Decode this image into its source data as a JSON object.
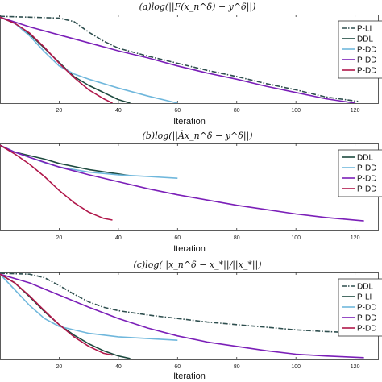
{
  "chart_data": [
    {
      "type": "line",
      "title": "(a)log(||F(x_n^δ) − y^δ||)",
      "xlabel": "Iteration",
      "ylabel": "",
      "xlim": [
        0,
        128
      ],
      "ylim": [
        0,
        1
      ],
      "xticks": [
        20,
        40,
        60,
        80,
        100,
        120
      ],
      "grid": false,
      "legend_position": "top-right",
      "series": [
        {
          "name": "P-LI",
          "color": "#2f4f4f",
          "dash": "dashdot",
          "x": [
            0,
            10,
            20,
            25,
            30,
            35,
            40,
            50,
            60,
            70,
            80,
            90,
            100,
            110,
            121
          ],
          "y": [
            0.98,
            0.97,
            0.96,
            0.92,
            0.8,
            0.7,
            0.62,
            0.53,
            0.45,
            0.37,
            0.3,
            0.22,
            0.15,
            0.07,
            0.02
          ]
        },
        {
          "name": "DDL",
          "color": "#1d4a3f",
          "dash": "solid",
          "x": [
            0,
            5,
            10,
            15,
            20,
            25,
            30,
            35,
            40,
            44
          ],
          "y": [
            0.97,
            0.9,
            0.78,
            0.62,
            0.46,
            0.3,
            0.2,
            0.12,
            0.04,
            0.0
          ]
        },
        {
          "name": "P-DD",
          "color": "#6fb7dc",
          "dash": "solid",
          "x": [
            0,
            5,
            10,
            15,
            20,
            25,
            30,
            40,
            50,
            60
          ],
          "y": [
            0.97,
            0.9,
            0.76,
            0.58,
            0.42,
            0.33,
            0.27,
            0.17,
            0.08,
            0.0
          ]
        },
        {
          "name": "P-DD",
          "color": "#7b1fb8",
          "dash": "solid",
          "x": [
            0,
            10,
            20,
            30,
            40,
            50,
            60,
            70,
            80,
            90,
            100,
            110,
            120
          ],
          "y": [
            0.97,
            0.86,
            0.77,
            0.68,
            0.59,
            0.51,
            0.42,
            0.34,
            0.27,
            0.19,
            0.12,
            0.05,
            0.0
          ]
        },
        {
          "name": "P-DD",
          "color": "#b0174a",
          "dash": "solid",
          "x": [
            0,
            5,
            10,
            15,
            20,
            25,
            30,
            35,
            38
          ],
          "y": [
            0.97,
            0.9,
            0.79,
            0.63,
            0.45,
            0.29,
            0.15,
            0.05,
            0.0
          ]
        }
      ]
    },
    {
      "type": "line",
      "title": "(b)log(||Âx_n^δ − y^δ||)",
      "xlabel": "Iteration",
      "ylabel": "",
      "xlim": [
        0,
        128
      ],
      "ylim": [
        0,
        1
      ],
      "xticks": [
        20,
        40,
        60,
        80,
        100,
        120
      ],
      "grid": false,
      "legend_position": "top-right",
      "series": [
        {
          "name": "DDL",
          "color": "#1d4a3f",
          "dash": "solid",
          "x": [
            0,
            5,
            10,
            15,
            20,
            30,
            40,
            44
          ],
          "y": [
            0.98,
            0.9,
            0.86,
            0.82,
            0.77,
            0.7,
            0.65,
            0.63
          ]
        },
        {
          "name": "P-DD",
          "color": "#6fb7dc",
          "dash": "solid",
          "x": [
            0,
            5,
            10,
            15,
            20,
            30,
            40,
            50,
            60
          ],
          "y": [
            0.98,
            0.9,
            0.84,
            0.78,
            0.73,
            0.67,
            0.64,
            0.62,
            0.6
          ]
        },
        {
          "name": "P-DD",
          "color": "#7b1fb8",
          "dash": "solid",
          "x": [
            0,
            5,
            10,
            20,
            30,
            40,
            50,
            60,
            70,
            80,
            90,
            100,
            110,
            123
          ],
          "y": [
            0.98,
            0.9,
            0.84,
            0.73,
            0.64,
            0.56,
            0.48,
            0.41,
            0.35,
            0.29,
            0.24,
            0.19,
            0.15,
            0.11
          ]
        },
        {
          "name": "P-DD",
          "color": "#b0174a",
          "dash": "solid",
          "x": [
            0,
            5,
            10,
            15,
            20,
            25,
            30,
            35,
            38
          ],
          "y": [
            0.98,
            0.88,
            0.76,
            0.62,
            0.46,
            0.32,
            0.21,
            0.14,
            0.12
          ]
        }
      ]
    },
    {
      "type": "line",
      "title": "(c)log(||x_n^δ − x_*||/||x_*||)",
      "xlabel": "Iteration",
      "ylabel": "",
      "xlim": [
        0,
        128
      ],
      "ylim": [
        0,
        1
      ],
      "xticks": [
        20,
        40,
        60,
        80,
        100,
        120
      ],
      "grid": false,
      "legend_position": "top-right",
      "series": [
        {
          "name": "DDL",
          "color": "#2f4f4f",
          "dash": "dashdot",
          "x": [
            0,
            10,
            15,
            20,
            25,
            30,
            35,
            40,
            50,
            60,
            70,
            80,
            90,
            100,
            110,
            124
          ],
          "y": [
            0.99,
            0.98,
            0.94,
            0.85,
            0.75,
            0.66,
            0.6,
            0.56,
            0.51,
            0.47,
            0.43,
            0.4,
            0.37,
            0.34,
            0.32,
            0.3
          ]
        },
        {
          "name": "P-LI",
          "color": "#1d4a3f",
          "dash": "solid",
          "x": [
            0,
            5,
            10,
            15,
            20,
            25,
            30,
            35,
            40,
            44
          ],
          "y": [
            0.98,
            0.88,
            0.72,
            0.55,
            0.4,
            0.28,
            0.18,
            0.1,
            0.04,
            0.01
          ]
        },
        {
          "name": "P-DD",
          "color": "#6fb7dc",
          "dash": "solid",
          "x": [
            0,
            5,
            10,
            15,
            20,
            30,
            40,
            50,
            60
          ],
          "y": [
            0.98,
            0.8,
            0.62,
            0.47,
            0.38,
            0.3,
            0.26,
            0.24,
            0.22
          ]
        },
        {
          "name": "P-DD",
          "color": "#7b1fb8",
          "dash": "solid",
          "x": [
            0,
            10,
            20,
            30,
            40,
            50,
            60,
            70,
            80,
            90,
            100,
            110,
            123
          ],
          "y": [
            0.98,
            0.88,
            0.74,
            0.6,
            0.47,
            0.36,
            0.27,
            0.2,
            0.15,
            0.1,
            0.06,
            0.04,
            0.02
          ]
        },
        {
          "name": "P-DD",
          "color": "#b0174a",
          "dash": "solid",
          "x": [
            0,
            5,
            10,
            15,
            20,
            25,
            30,
            35,
            38
          ],
          "y": [
            0.98,
            0.88,
            0.73,
            0.56,
            0.4,
            0.26,
            0.15,
            0.07,
            0.05
          ]
        }
      ]
    }
  ]
}
